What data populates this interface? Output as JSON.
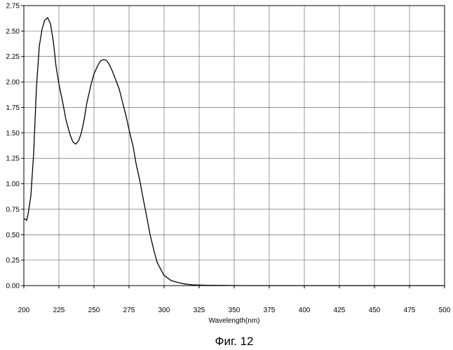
{
  "figure": {
    "caption": "Фиг. 12"
  },
  "chart_data": {
    "type": "line",
    "title": "",
    "xlabel": "Wavelength(nm)",
    "ylabel": "",
    "xlim": [
      200,
      500
    ],
    "ylim": [
      0,
      2.75
    ],
    "grid": true,
    "x_ticks": [
      200,
      225,
      250,
      275,
      300,
      325,
      350,
      375,
      400,
      425,
      450,
      475,
      500
    ],
    "x_tick_labels": [
      "200",
      "225",
      "250",
      "275",
      "300",
      "325",
      "350",
      "375",
      "400",
      "425",
      "450",
      "475",
      "500"
    ],
    "y_ticks": [
      0,
      0.25,
      0.5,
      0.75,
      1.0,
      1.25,
      1.5,
      1.75,
      2.0,
      2.25,
      2.5,
      2.75
    ],
    "y_tick_labels": [
      "0.00",
      "0.25",
      "0.50",
      "0.75",
      "1.00",
      "1.25",
      "1.50",
      "1.75",
      "2.00",
      "2.25",
      "2.50",
      "2.75"
    ],
    "series": [
      {
        "x": [
          200,
          202,
          203,
          205,
          207,
          209,
          211,
          213,
          215,
          217,
          219,
          221,
          223,
          225,
          228,
          230,
          233,
          235,
          237,
          239,
          241,
          243,
          245,
          248,
          250,
          253,
          255,
          257,
          259,
          261,
          263,
          265,
          268,
          270,
          273,
          275,
          278,
          280,
          283,
          285,
          288,
          290,
          293,
          295,
          298,
          300,
          303,
          305,
          310,
          315,
          320,
          325,
          330,
          340,
          350,
          360,
          375,
          400,
          450,
          500
        ],
        "y": [
          0.66,
          0.64,
          0.7,
          0.88,
          1.3,
          1.95,
          2.35,
          2.52,
          2.61,
          2.63,
          2.57,
          2.4,
          2.15,
          1.98,
          1.78,
          1.63,
          1.48,
          1.41,
          1.39,
          1.42,
          1.5,
          1.63,
          1.8,
          1.98,
          2.08,
          2.17,
          2.21,
          2.22,
          2.21,
          2.17,
          2.11,
          2.04,
          1.93,
          1.82,
          1.66,
          1.53,
          1.36,
          1.2,
          1.01,
          0.86,
          0.65,
          0.5,
          0.33,
          0.23,
          0.15,
          0.1,
          0.07,
          0.05,
          0.03,
          0.015,
          0.008,
          0.005,
          0.003,
          0.002,
          0.001,
          0.0,
          0.0,
          0.0,
          0.0,
          0.0
        ]
      }
    ]
  }
}
